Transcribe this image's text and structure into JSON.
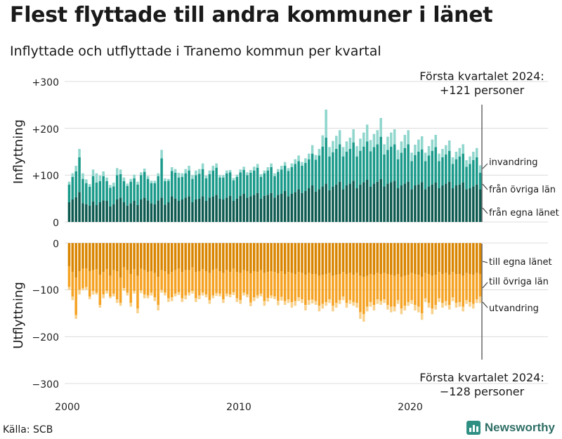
{
  "title": "Flest flyttade till andra kommuner i länet",
  "subtitle": "Inflyttade och utflyttade i Tranemo kommun per kvartal",
  "source": "Källa: SCB",
  "brand": "Newsworthy",
  "chart_data": {
    "type": "bar",
    "stacked": true,
    "x_start_year": 2000,
    "x_end_year": 2024,
    "x_ticks": [
      "2000",
      "2010",
      "2020"
    ],
    "y_ticks_top": [
      "+300",
      "+200",
      "+100",
      "0"
    ],
    "y_ticks_bottom": [
      "0",
      "−100",
      "−200",
      "−300"
    ],
    "ylim_inflow": [
      0,
      300
    ],
    "ylim_outflow": [
      -300,
      0
    ],
    "ylabel_top": "Inflyttning",
    "ylabel_bottom": "Utflyttning",
    "annotation_top": [
      "Första kvartalet 2024:",
      "+121 personer"
    ],
    "annotation_bottom": [
      "Första kvartalet 2024:",
      "−128 personer"
    ],
    "colors": {
      "in_same": "#0d5a50",
      "in_other": "#1a9a8a",
      "in_abroad": "#8fd6cd",
      "out_same": "#d98500",
      "out_other": "#f5a222",
      "out_abroad": "#f8d18b"
    },
    "inflow_series": [
      {
        "name": "från egna länet",
        "values": [
          42,
          48,
          53,
          64,
          40,
          38,
          35,
          44,
          36,
          42,
          46,
          45,
          33,
          38,
          48,
          52,
          42,
          35,
          40,
          45,
          36,
          48,
          52,
          46,
          40,
          38,
          46,
          52,
          37,
          42,
          55,
          50,
          45,
          48,
          52,
          55,
          42,
          48,
          50,
          55,
          45,
          52,
          54,
          58,
          50,
          48,
          52,
          56,
          45,
          50,
          56,
          60,
          52,
          55,
          58,
          62,
          50,
          56,
          58,
          62,
          52,
          58,
          60,
          66,
          55,
          60,
          64,
          70,
          62,
          66,
          72,
          78,
          65,
          70,
          76,
          82,
          68,
          75,
          80,
          86,
          70,
          78,
          82,
          88,
          72,
          80,
          85,
          90,
          75,
          82,
          86,
          92,
          76,
          82,
          85,
          88,
          72,
          78,
          82,
          86,
          70,
          78,
          80,
          85,
          70,
          76,
          80,
          84,
          72,
          78,
          82,
          86,
          72,
          78,
          80,
          84,
          70,
          72,
          76,
          80,
          70
        ]
      },
      {
        "name": "från övriga län",
        "values": [
          38,
          48,
          55,
          74,
          52,
          45,
          40,
          54,
          48,
          45,
          52,
          42,
          40,
          38,
          52,
          50,
          45,
          42,
          46,
          48,
          44,
          52,
          55,
          46,
          43,
          45,
          52,
          84,
          50,
          46,
          54,
          55,
          50,
          48,
          52,
          55,
          50,
          52,
          53,
          58,
          48,
          50,
          56,
          58,
          45,
          47,
          52,
          50,
          44,
          46,
          50,
          51,
          48,
          50,
          52,
          54,
          46,
          48,
          52,
          55,
          46,
          49,
          52,
          54,
          54,
          57,
          60,
          60,
          58,
          60,
          62,
          68,
          68,
          72,
          85,
          98,
          72,
          74,
          76,
          80,
          70,
          72,
          74,
          82,
          68,
          72,
          76,
          82,
          76,
          78,
          80,
          90,
          68,
          72,
          76,
          78,
          62,
          70,
          76,
          80,
          60,
          65,
          70,
          70,
          60,
          66,
          72,
          76,
          58,
          60,
          62,
          66,
          52,
          56,
          60,
          62,
          48,
          52,
          56,
          58,
          35
        ]
      },
      {
        "name": "invandring",
        "values": [
          6,
          8,
          12,
          18,
          12,
          8,
          6,
          14,
          20,
          12,
          10,
          8,
          6,
          8,
          15,
          10,
          8,
          5,
          6,
          8,
          6,
          6,
          7,
          6,
          5,
          5,
          6,
          18,
          6,
          4,
          8,
          8,
          10,
          8,
          9,
          10,
          8,
          10,
          10,
          12,
          6,
          8,
          10,
          9,
          5,
          5,
          6,
          5,
          5,
          5,
          6,
          7,
          6,
          6,
          8,
          8,
          6,
          6,
          7,
          8,
          6,
          6,
          8,
          8,
          6,
          8,
          10,
          12,
          8,
          10,
          12,
          18,
          10,
          14,
          24,
          60,
          20,
          24,
          28,
          30,
          20,
          22,
          24,
          28,
          22,
          26,
          30,
          36,
          24,
          28,
          30,
          40,
          22,
          28,
          30,
          32,
          20,
          24,
          28,
          30,
          18,
          22,
          26,
          28,
          18,
          20,
          24,
          26,
          16,
          18,
          20,
          22,
          14,
          16,
          18,
          20,
          14,
          16,
          18,
          20,
          16
        ]
      }
    ],
    "outflow_series": [
      {
        "name": "till egna länet",
        "values": [
          -50,
          -62,
          -74,
          -60,
          -55,
          -54,
          -60,
          -58,
          -56,
          -68,
          -62,
          -56,
          -70,
          -58,
          -60,
          -74,
          -52,
          -58,
          -66,
          -56,
          -70,
          -55,
          -58,
          -62,
          -60,
          -64,
          -72,
          -58,
          -60,
          -66,
          -62,
          -58,
          -55,
          -62,
          -58,
          -58,
          -52,
          -62,
          -60,
          -56,
          -60,
          -64,
          -58,
          -55,
          -60,
          -64,
          -58,
          -62,
          -55,
          -62,
          -64,
          -58,
          -60,
          -65,
          -60,
          -62,
          -58,
          -64,
          -62,
          -60,
          -62,
          -65,
          -60,
          -66,
          -62,
          -64,
          -66,
          -62,
          -64,
          -68,
          -64,
          -66,
          -66,
          -70,
          -68,
          -66,
          -64,
          -70,
          -68,
          -66,
          -62,
          -66,
          -64,
          -68,
          -64,
          -70,
          -72,
          -70,
          -66,
          -68,
          -64,
          -66,
          -64,
          -66,
          -68,
          -70,
          -66,
          -72,
          -70,
          -68,
          -64,
          -66,
          -68,
          -72,
          -64,
          -66,
          -70,
          -68,
          -62,
          -66,
          -64,
          -68,
          -62,
          -66,
          -66,
          -70,
          -64,
          -66,
          -68,
          -64,
          -66
        ]
      },
      {
        "name": "till övriga län",
        "values": [
          -44,
          -52,
          -80,
          -40,
          -42,
          -40,
          -54,
          -44,
          -50,
          -64,
          -48,
          -46,
          -44,
          -50,
          -60,
          -54,
          -44,
          -48,
          -62,
          -46,
          -70,
          -46,
          -52,
          -50,
          -46,
          -52,
          -60,
          -42,
          -46,
          -52,
          -54,
          -50,
          -50,
          -56,
          -54,
          -48,
          -50,
          -56,
          -52,
          -50,
          -50,
          -58,
          -54,
          -52,
          -48,
          -56,
          -50,
          -48,
          -50,
          -56,
          -58,
          -48,
          -50,
          -62,
          -56,
          -50,
          -50,
          -60,
          -55,
          -52,
          -52,
          -58,
          -55,
          -58,
          -58,
          -62,
          -58,
          -54,
          -56,
          -64,
          -58,
          -55,
          -58,
          -64,
          -62,
          -60,
          -56,
          -64,
          -60,
          -56,
          -52,
          -62,
          -58,
          -58,
          -64,
          -78,
          -80,
          -66,
          -60,
          -64,
          -56,
          -58,
          -56,
          -66,
          -68,
          -66,
          -56,
          -68,
          -64,
          -58,
          -58,
          -66,
          -68,
          -78,
          -54,
          -62,
          -70,
          -64,
          -56,
          -62,
          -60,
          -64,
          -54,
          -62,
          -60,
          -66,
          -58,
          -60,
          -62,
          -56,
          -48
        ]
      },
      {
        "name": "utvandring",
        "values": [
          -6,
          -8,
          -8,
          -10,
          -4,
          -6,
          -6,
          -8,
          -4,
          -6,
          -8,
          -6,
          -4,
          -6,
          -8,
          -6,
          -6,
          -6,
          -8,
          -6,
          -10,
          -6,
          -8,
          -6,
          -6,
          -8,
          -12,
          -6,
          -6,
          -8,
          -8,
          -6,
          -6,
          -8,
          -8,
          -6,
          -6,
          -8,
          -8,
          -6,
          -6,
          -8,
          -6,
          -6,
          -6,
          -8,
          -6,
          -6,
          -6,
          -8,
          -8,
          -6,
          -6,
          -8,
          -8,
          -6,
          -6,
          -10,
          -8,
          -6,
          -6,
          -10,
          -8,
          -8,
          -8,
          -12,
          -10,
          -8,
          -8,
          -12,
          -10,
          -8,
          -8,
          -12,
          -10,
          -8,
          -8,
          -12,
          -10,
          -8,
          -8,
          -10,
          -8,
          -8,
          -10,
          -14,
          -16,
          -10,
          -10,
          -12,
          -10,
          -8,
          -8,
          -10,
          -12,
          -10,
          -8,
          -12,
          -10,
          -8,
          -8,
          -12,
          -12,
          -14,
          -8,
          -10,
          -12,
          -10,
          -8,
          -10,
          -10,
          -10,
          -8,
          -10,
          -10,
          -10,
          -8,
          -10,
          -10,
          -8,
          -14
        ]
      }
    ]
  }
}
